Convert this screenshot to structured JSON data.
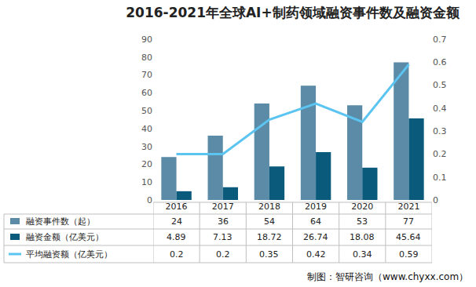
{
  "chart_data": {
    "type": "bar",
    "title": "2016-2021年全球AI+制药领域融资事件数及融资金额",
    "categories": [
      "2016",
      "2017",
      "2018",
      "2019",
      "2020",
      "2021"
    ],
    "series": [
      {
        "name": "融资事件数（起）",
        "type": "bar",
        "color": "#5b8ba6",
        "values": [
          24,
          36,
          54,
          64,
          53,
          77
        ]
      },
      {
        "name": "融资金额（亿美元）",
        "type": "bar",
        "color": "#0a5a7c",
        "values": [
          4.89,
          7.13,
          18.72,
          26.74,
          18.08,
          45.64
        ]
      },
      {
        "name": "平均融资额（亿美元）",
        "type": "line",
        "axis": "y2",
        "color": "#5bc4f0",
        "values": [
          0.2,
          0.2,
          0.35,
          0.42,
          0.34,
          0.59
        ]
      }
    ],
    "ylim": [
      0,
      90
    ],
    "yticks": [
      0,
      10,
      20,
      30,
      40,
      50,
      60,
      70,
      80,
      90
    ],
    "y2lim": [
      0,
      0.7
    ],
    "y2ticks": [
      0,
      0.1,
      0.2,
      0.3,
      0.4,
      0.5,
      0.6,
      0.7
    ],
    "grid": false,
    "source": "制图：智研咨询（www.chyxx.com）"
  }
}
